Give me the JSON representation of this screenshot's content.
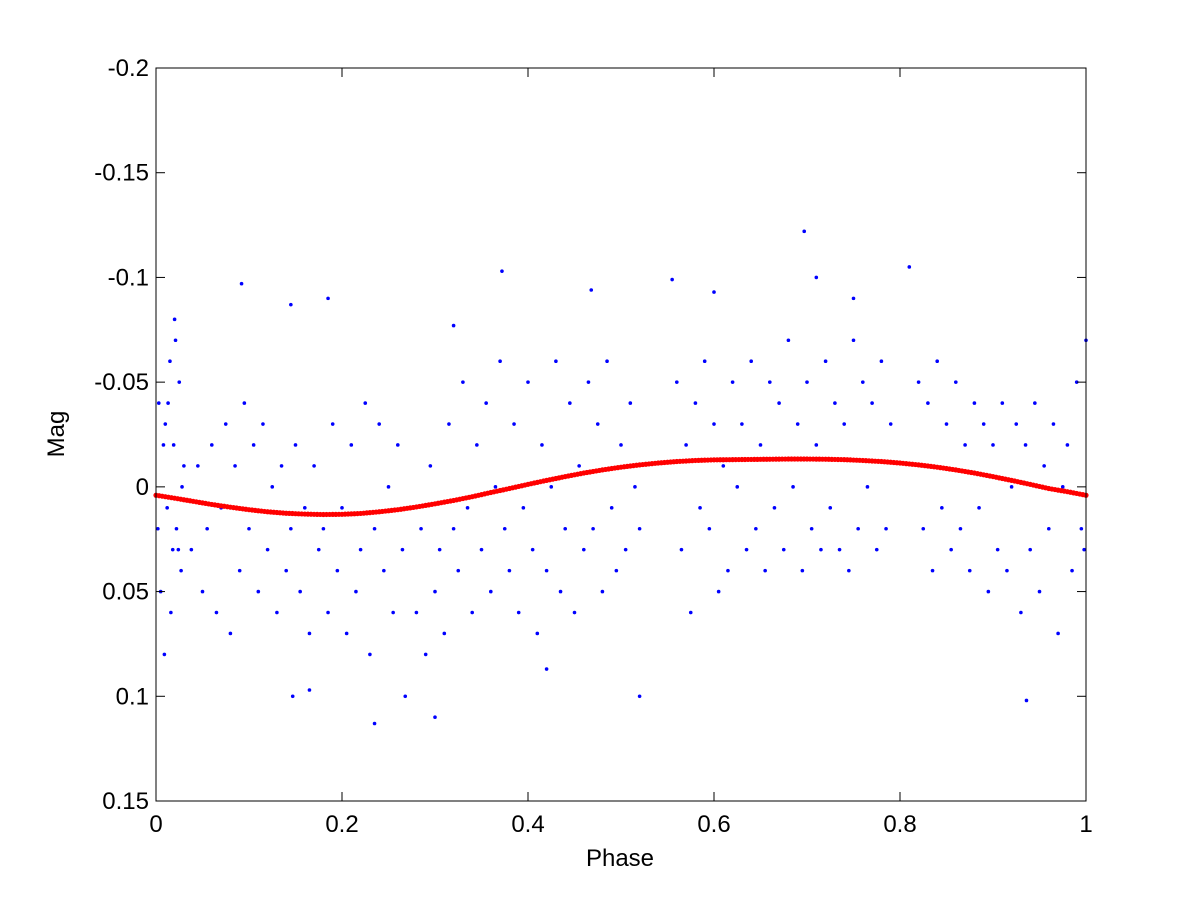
{
  "chart_data": {
    "type": "scatter",
    "title": "",
    "xlabel": "Phase",
    "ylabel": "Mag",
    "xlim": [
      0,
      1
    ],
    "ylim": [
      -0.2,
      0.15
    ],
    "y_reversed": true,
    "grid": false,
    "x_ticks": [
      0,
      0.2,
      0.4,
      0.6,
      0.8,
      1
    ],
    "x_tick_labels": [
      "0",
      "0.2",
      "0.4",
      "0.6",
      "0.8",
      "1"
    ],
    "y_ticks": [
      -0.2,
      -0.15,
      -0.1,
      -0.05,
      0,
      0.05,
      0.1,
      0.15
    ],
    "y_tick_labels": [
      "-0.2",
      "-0.15",
      "-0.1",
      "-0.05",
      "0",
      "0.05",
      "0.1",
      "0.15"
    ],
    "colors": {
      "observations": "#0000ff",
      "fit": "#ff0000",
      "axes": "#000000",
      "background": "#ffffff"
    },
    "series": [
      {
        "style": "scatter-points",
        "color": "#0000ff",
        "x": [
          0.003,
          0.008,
          0.012,
          0.015,
          0.018,
          0.02,
          0.022,
          0.025,
          0.027,
          0.03,
          0.005,
          0.01,
          0.016,
          0.021,
          0.028,
          0.002,
          0.013,
          0.024,
          0.009,
          0.019,
          0.038,
          0.045,
          0.05,
          0.055,
          0.06,
          0.065,
          0.07,
          0.075,
          0.08,
          0.085,
          0.09,
          0.095,
          0.1,
          0.105,
          0.11,
          0.115,
          0.12,
          0.125,
          0.13,
          0.135,
          0.14,
          0.145,
          0.15,
          0.155,
          0.16,
          0.165,
          0.17,
          0.175,
          0.18,
          0.185,
          0.19,
          0.195,
          0.2,
          0.205,
          0.21,
          0.215,
          0.22,
          0.225,
          0.23,
          0.235,
          0.24,
          0.245,
          0.25,
          0.255,
          0.26,
          0.265,
          0.28,
          0.285,
          0.29,
          0.295,
          0.3,
          0.305,
          0.31,
          0.315,
          0.32,
          0.325,
          0.33,
          0.335,
          0.34,
          0.345,
          0.35,
          0.355,
          0.36,
          0.365,
          0.37,
          0.375,
          0.38,
          0.385,
          0.39,
          0.395,
          0.4,
          0.405,
          0.41,
          0.415,
          0.42,
          0.425,
          0.43,
          0.435,
          0.44,
          0.445,
          0.45,
          0.455,
          0.46,
          0.465,
          0.47,
          0.475,
          0.48,
          0.485,
          0.49,
          0.495,
          0.5,
          0.505,
          0.51,
          0.515,
          0.52,
          0.56,
          0.565,
          0.57,
          0.575,
          0.58,
          0.585,
          0.59,
          0.595,
          0.6,
          0.605,
          0.61,
          0.615,
          0.62,
          0.625,
          0.63,
          0.635,
          0.64,
          0.645,
          0.65,
          0.655,
          0.66,
          0.665,
          0.67,
          0.675,
          0.68,
          0.685,
          0.69,
          0.695,
          0.7,
          0.705,
          0.71,
          0.715,
          0.72,
          0.725,
          0.73,
          0.735,
          0.74,
          0.745,
          0.75,
          0.755,
          0.76,
          0.765,
          0.77,
          0.775,
          0.78,
          0.785,
          0.79,
          0.82,
          0.825,
          0.83,
          0.835,
          0.84,
          0.845,
          0.85,
          0.855,
          0.86,
          0.865,
          0.87,
          0.875,
          0.88,
          0.885,
          0.89,
          0.895,
          0.9,
          0.905,
          0.91,
          0.915,
          0.92,
          0.925,
          0.93,
          0.935,
          0.94,
          0.945,
          0.95,
          0.955,
          0.96,
          0.965,
          0.97,
          0.975,
          0.98,
          0.985,
          0.99,
          0.995,
          1.0,
          0.998,
          0.092,
          0.147,
          0.185,
          0.372,
          0.468,
          0.555,
          0.6,
          0.697,
          0.71,
          0.81,
          0.936,
          0.235,
          0.3,
          0.52,
          0.268,
          0.145,
          0.165,
          0.32,
          0.42,
          0.75
        ],
        "y": [
          -0.04,
          -0.02,
          0.01,
          -0.06,
          0.03,
          -0.08,
          0.02,
          -0.05,
          0.04,
          -0.01,
          0.05,
          -0.03,
          0.06,
          -0.07,
          0.0,
          0.02,
          -0.04,
          0.03,
          0.08,
          -0.02,
          0.03,
          -0.01,
          0.05,
          0.02,
          -0.02,
          0.06,
          0.01,
          -0.03,
          0.07,
          -0.01,
          0.04,
          -0.04,
          0.02,
          -0.02,
          0.05,
          -0.03,
          0.03,
          0.0,
          0.06,
          -0.01,
          0.04,
          0.02,
          -0.02,
          0.05,
          0.01,
          0.07,
          -0.01,
          0.03,
          0.02,
          0.06,
          -0.03,
          0.04,
          0.01,
          0.07,
          -0.02,
          0.05,
          0.03,
          -0.04,
          0.08,
          0.02,
          -0.03,
          0.04,
          0.0,
          0.06,
          -0.02,
          0.03,
          0.06,
          0.02,
          0.08,
          -0.01,
          0.05,
          0.03,
          0.07,
          -0.03,
          0.02,
          0.04,
          -0.05,
          0.01,
          0.06,
          -0.02,
          0.03,
          -0.04,
          0.05,
          0.0,
          -0.06,
          0.02,
          0.04,
          -0.03,
          0.06,
          0.01,
          -0.05,
          0.03,
          0.07,
          -0.02,
          0.04,
          0.0,
          -0.06,
          0.05,
          0.02,
          -0.04,
          0.06,
          -0.01,
          0.03,
          -0.05,
          0.02,
          -0.03,
          0.05,
          -0.06,
          0.01,
          0.04,
          -0.02,
          0.03,
          -0.04,
          0.0,
          0.02,
          -0.05,
          0.03,
          -0.02,
          0.06,
          -0.04,
          0.01,
          -0.06,
          0.02,
          -0.03,
          0.05,
          -0.01,
          0.04,
          -0.05,
          0.0,
          -0.03,
          0.03,
          -0.06,
          0.02,
          -0.02,
          0.04,
          -0.05,
          0.01,
          -0.04,
          0.03,
          -0.07,
          0.0,
          -0.03,
          0.04,
          -0.05,
          0.02,
          -0.02,
          0.03,
          -0.06,
          0.01,
          -0.04,
          0.03,
          -0.03,
          0.04,
          -0.07,
          0.02,
          -0.05,
          0.0,
          -0.04,
          0.03,
          -0.06,
          0.02,
          -0.03,
          -0.05,
          0.02,
          -0.04,
          0.04,
          -0.06,
          0.01,
          -0.03,
          0.03,
          -0.05,
          0.02,
          -0.02,
          0.04,
          -0.04,
          0.01,
          -0.03,
          0.05,
          -0.02,
          0.03,
          -0.04,
          0.04,
          0.0,
          -0.03,
          0.06,
          -0.02,
          0.03,
          -0.04,
          0.05,
          -0.01,
          0.02,
          -0.03,
          0.07,
          0.0,
          -0.02,
          0.04,
          -0.05,
          0.02,
          -0.07,
          0.03,
          -0.097,
          0.1,
          -0.09,
          -0.103,
          -0.094,
          -0.099,
          -0.093,
          -0.122,
          -0.1,
          -0.105,
          0.102,
          0.113,
          0.11,
          0.1,
          0.1,
          -0.087,
          0.097,
          -0.077,
          0.087,
          -0.09
        ]
      },
      {
        "style": "fit-curve",
        "color": "#ff0000",
        "x": [
          0.0,
          0.02,
          0.04,
          0.06,
          0.08,
          0.1,
          0.12,
          0.14,
          0.16,
          0.18,
          0.2,
          0.22,
          0.24,
          0.26,
          0.28,
          0.3,
          0.32,
          0.34,
          0.36,
          0.38,
          0.4,
          0.42,
          0.44,
          0.46,
          0.48,
          0.5,
          0.52,
          0.54,
          0.56,
          0.58,
          0.6,
          0.62,
          0.64,
          0.66,
          0.68,
          0.7,
          0.72,
          0.74,
          0.76,
          0.78,
          0.8,
          0.82,
          0.84,
          0.86,
          0.88,
          0.9,
          0.92,
          0.94,
          0.96,
          0.98,
          1.0
        ],
        "y": [
          0.004,
          0.0054,
          0.0069,
          0.0084,
          0.0097,
          0.0109,
          0.0119,
          0.0126,
          0.013,
          0.0132,
          0.0131,
          0.0127,
          0.0119,
          0.0109,
          0.0096,
          0.0081,
          0.0065,
          0.0047,
          0.0027,
          0.0008,
          -0.0012,
          -0.0031,
          -0.0049,
          -0.0066,
          -0.0081,
          -0.0094,
          -0.0105,
          -0.0114,
          -0.0121,
          -0.0126,
          -0.0129,
          -0.013,
          -0.0131,
          -0.0132,
          -0.0133,
          -0.0133,
          -0.0132,
          -0.013,
          -0.0126,
          -0.0121,
          -0.0114,
          -0.0105,
          -0.0094,
          -0.0081,
          -0.0066,
          -0.0049,
          -0.0031,
          -0.0012,
          0.0008,
          0.0023,
          0.004
        ]
      }
    ]
  }
}
